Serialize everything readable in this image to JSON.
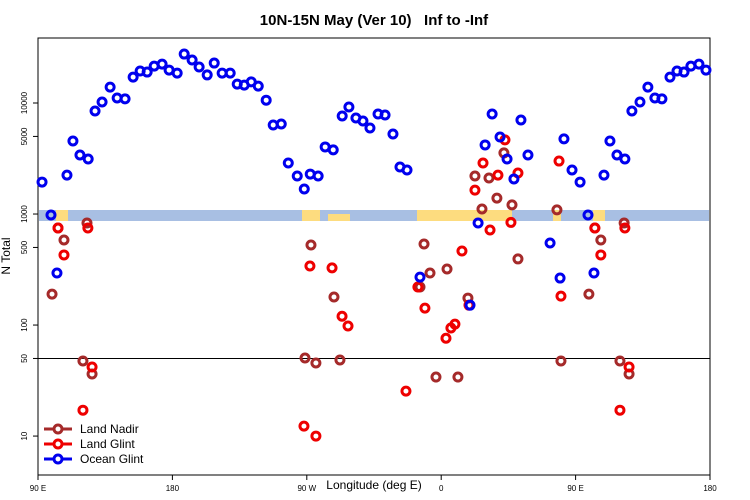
{
  "chart_data": {
    "type": "scatter",
    "title": "10N-15N May (Ver 10)   Inf to -Inf",
    "xlabel": "Longitude (deg E)",
    "ylabel": "N Total",
    "xlim": [
      90,
      540
    ],
    "ylim": [
      4.46,
      38500
    ],
    "ylog": true,
    "xticks": [
      {
        "value": 90,
        "label": "90 E"
      },
      180,
      {
        "value": 270,
        "label": "90 W"
      },
      {
        "value": 360,
        "label": "0"
      },
      {
        "value": 450,
        "label": "90 E"
      },
      {
        "value": 540,
        "label": "180"
      }
    ],
    "yticks": [
      10,
      50,
      100,
      500,
      1000,
      5000,
      10000
    ],
    "hline": 50,
    "legend": "bottom-left",
    "series": [
      {
        "name": "Land Nadir",
        "color": "#a52a2a",
        "x": [
          99.4,
          103.4,
          107.4,
          120.1,
          122.8,
          126.2,
          268.8,
          272.8,
          276.1,
          288.2,
          292.2,
          345.8,
          348.5,
          352.5,
          356.5,
          363.9,
          371.2,
          377.9,
          382.6,
          387.3,
          392,
          397.3,
          402,
          407.4,
          411.4,
          437.5,
          440.2,
          458.9,
          462.9,
          466.9,
          479.7,
          482.5,
          485.8
        ],
        "values": [
          190,
          748,
          583,
          47.4,
          830,
          36.2,
          50.5,
          526,
          45.5,
          179,
          48.4,
          220,
          537,
          294,
          34,
          320,
          34,
          175,
          2200,
          1110,
          2110,
          1390,
          3550,
          1210,
          394,
          1090,
          47.4,
          190,
          748,
          583,
          47.4,
          830,
          36.2
        ]
      },
      {
        "name": "Land Glint",
        "color": "#ee0000",
        "x": [
          103.4,
          107.4,
          120.1,
          123.4,
          126.2,
          268.1,
          272.1,
          276.1,
          286.9,
          293.6,
          297.6,
          336.4,
          344.4,
          349.1,
          363.2,
          366.5,
          369.2,
          373.9,
          378.6,
          382.6,
          388,
          392.7,
          398,
          402.7,
          406.7,
          411.4,
          438.9,
          440.2,
          462.9,
          466.9,
          479.7,
          483,
          485.8
        ],
        "values": [
          748,
          428,
          17.1,
          748,
          41.9,
          12.3,
          340,
          10,
          327,
          120,
          98,
          25.4,
          220,
          142,
          76,
          94,
          102,
          464,
          151,
          1640,
          2880,
          718,
          2240,
          4650,
          840,
          2340,
          3000,
          182,
          748,
          428,
          17.1,
          748,
          41.9
        ]
      },
      {
        "name": "Ocean Glint",
        "color": "#0000ee",
        "x": [
          92.7,
          98.7,
          102.7,
          109.4,
          113.4,
          118.1,
          123.6,
          128.2,
          132.9,
          138.3,
          143,
          148.3,
          153.7,
          158.4,
          163.1,
          167.8,
          173.1,
          177.8,
          183.2,
          187.9,
          193.2,
          197.9,
          203.3,
          208,
          213.3,
          218.7,
          223.4,
          228.1,
          232.8,
          237.5,
          242.8,
          247.5,
          252.9,
          257.6,
          263.6,
          268.3,
          272.3,
          277.6,
          282.3,
          287.7,
          293.7,
          298.2,
          302.9,
          307.6,
          312.3,
          317.7,
          322.4,
          327.7,
          332.4,
          337.1,
          345.8,
          379.3,
          384.7,
          389.4,
          394.1,
          399.4,
          404.1,
          408.7,
          413.4,
          418.1,
          432.9,
          439.6,
          442.2,
          447.6,
          453,
          458.3,
          462.3,
          469,
          473,
          477.7,
          483,
          487.7,
          493.1,
          498.4,
          503.1,
          507.8,
          513.2,
          517.9,
          522.6,
          527.2,
          532.6,
          537.3
        ],
        "values": [
          1940,
          980,
          294,
          2240,
          4550,
          3400,
          3130,
          8470,
          10200,
          13900,
          11100,
          10900,
          17100,
          19400,
          19000,
          21500,
          22400,
          19800,
          18600,
          27600,
          24400,
          21100,
          17900,
          22900,
          18600,
          18600,
          14800,
          14500,
          15500,
          14200,
          10600,
          6340,
          6470,
          2880,
          2200,
          1680,
          2290,
          2200,
          4020,
          3780,
          7640,
          9200,
          7330,
          6890,
          5960,
          7960,
          7800,
          5260,
          2650,
          2490,
          270,
          151,
          830,
          4190,
          7960,
          4940,
          3130,
          2070,
          7030,
          3400,
          548,
          265,
          4750,
          2490,
          1940,
          980,
          294,
          2240,
          4550,
          3400,
          3130,
          8470,
          10200,
          13900,
          11100,
          10900,
          17100,
          19400,
          19000,
          21500,
          22400,
          19800
        ]
      }
    ]
  }
}
